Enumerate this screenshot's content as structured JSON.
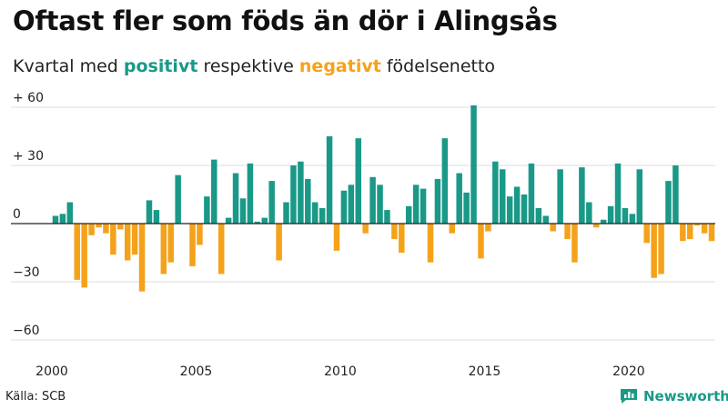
{
  "header": {
    "title": "Oftast fler som föds än dör i Alingsås",
    "subtitle_parts": [
      "Kvartal med ",
      "positivt",
      " respektive ",
      "negativt",
      " födelsenetto"
    ]
  },
  "footer": {
    "source": "Källa: SCB",
    "brand": "Newsworthy"
  },
  "colors": {
    "positive": "#1a9988",
    "negative": "#f5a21b",
    "grid": "#dddddd"
  },
  "chart_data": {
    "type": "bar",
    "title": "Oftast fler som föds än dör i Alingsås",
    "subtitle": "Kvartal med positivt respektive negativt födelsenetto",
    "xlabel": "",
    "ylabel": "",
    "ylim": [
      -65,
      65
    ],
    "yticks": [
      60,
      30,
      0,
      -30,
      -60
    ],
    "ytick_labels": [
      "+ 60",
      "+ 30",
      "0",
      "−30",
      "−60"
    ],
    "xticks": [
      2000,
      2005,
      2010,
      2015,
      2020
    ],
    "x_start": "2000 Q1",
    "grid": true,
    "values": [
      4,
      5,
      11,
      -29,
      -33,
      -6,
      -2,
      -5,
      -16,
      -3,
      -19,
      -16,
      -35,
      12,
      7,
      -26,
      -20,
      25,
      0,
      -22,
      -11,
      14,
      33,
      -26,
      3,
      26,
      13,
      31,
      1,
      3,
      22,
      -19,
      11,
      30,
      32,
      23,
      11,
      8,
      45,
      -14,
      17,
      20,
      44,
      -5,
      24,
      20,
      7,
      -8,
      -15,
      9,
      20,
      18,
      -20,
      23,
      44,
      -5,
      26,
      16,
      61,
      -18,
      -4,
      32,
      28,
      14,
      19,
      15,
      31,
      8,
      4,
      -4,
      28,
      -8,
      -20,
      29,
      11,
      -2,
      2,
      9,
      31,
      8,
      5,
      28,
      -10,
      -28,
      -26,
      22,
      30,
      -9,
      -8,
      -1,
      -5,
      -9
    ]
  }
}
